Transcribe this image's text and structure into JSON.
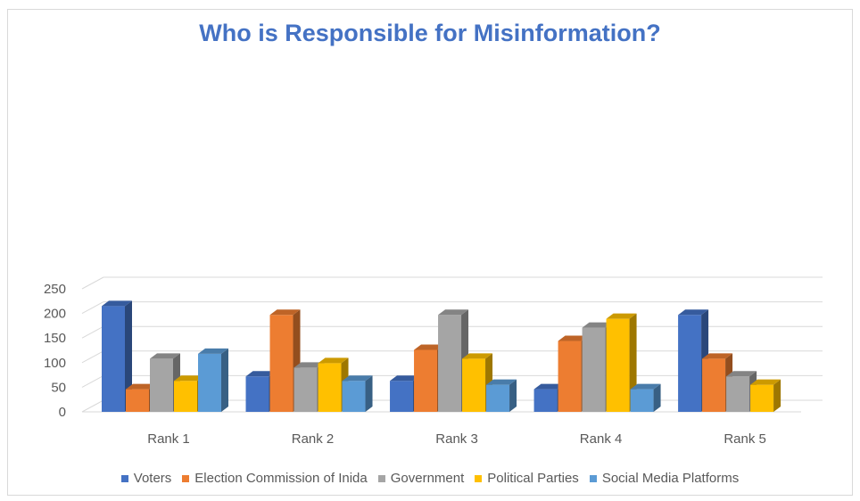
{
  "chart_data": {
    "type": "bar",
    "title": "Who is Responsible for Misinformation?",
    "xlabel": "",
    "ylabel": "",
    "categories": [
      "Rank 1",
      "Rank 2",
      "Rank 3",
      "Rank 4",
      "Rank 5"
    ],
    "yticks": [
      "0",
      "50",
      "100",
      "150",
      "200",
      "250"
    ],
    "ylim": [
      0,
      250
    ],
    "grid": true,
    "three_d": true,
    "legend_position": "bottom",
    "series": [
      {
        "name": "Voters",
        "color": "#4472c4",
        "values": [
          215,
          72,
          63,
          46,
          197
        ]
      },
      {
        "name": "Election Commission of Inida",
        "color": "#ed7d31",
        "values": [
          46,
          197,
          126,
          144,
          108
        ]
      },
      {
        "name": "Government",
        "color": "#a5a5a5",
        "values": [
          108,
          90,
          197,
          171,
          72
        ]
      },
      {
        "name": "Political Parties",
        "color": "#ffc000",
        "values": [
          63,
          99,
          108,
          189,
          55
        ]
      },
      {
        "name": "Social Media Platforms",
        "color": "#5b9bd5",
        "values": [
          118,
          63,
          55,
          46,
          null
        ]
      }
    ]
  }
}
